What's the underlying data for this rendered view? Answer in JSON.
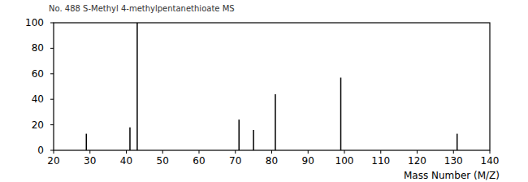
{
  "chart_data": {
    "type": "bar",
    "title": "No. 488 S-Methyl 4-methylpentanethioate MS",
    "x_label": "Mass Number (M/Z)",
    "x": [
      29,
      41,
      43,
      71,
      75,
      81,
      99,
      131
    ],
    "values": [
      13,
      18,
      100,
      24,
      16,
      44,
      57,
      13
    ],
    "color": "#000000",
    "xlim": [
      20,
      140
    ],
    "xticks": [
      20,
      30,
      40,
      50,
      60,
      70,
      80,
      90,
      100,
      110,
      120,
      130,
      140
    ],
    "ylim": [
      0,
      100
    ],
    "yticks": [
      0,
      20,
      40,
      60,
      80,
      100
    ],
    "grid": false
  }
}
